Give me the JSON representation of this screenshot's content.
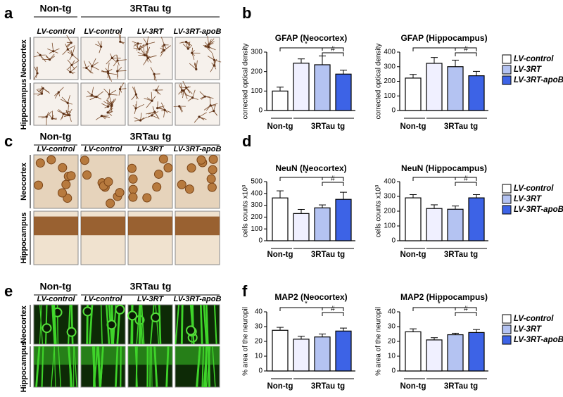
{
  "panel_letters": [
    "a",
    "b",
    "c",
    "d",
    "e",
    "f"
  ],
  "image_panels": [
    {
      "headers": [
        "Non-tg",
        "3RTau tg"
      ],
      "columns": [
        "LV-control",
        "LV-control",
        "LV-3RT",
        "LV-3RT-apoB"
      ],
      "rows": [
        "Neocortex",
        "Hippocampus"
      ]
    },
    {
      "headers": [
        "Non-tg",
        "3RTau tg"
      ],
      "columns": [
        "LV-control",
        "LV-control",
        "LV-3RT",
        "LV-3RT-apoB"
      ],
      "rows": [
        "Neocortex",
        "Hippocampus"
      ]
    },
    {
      "headers": [
        "Non-tg",
        "3RTau tg"
      ],
      "columns": [
        "LV-control",
        "LV-control",
        "LV-3RT",
        "LV-3RT-apoB"
      ],
      "rows": [
        "Neocortex",
        "Hippocampus"
      ]
    }
  ],
  "chart_data": [
    {
      "type": "bar",
      "title": "GFAP (Neocortex)",
      "y_label": "corrected optical density",
      "values": [
        100,
        243,
        235,
        187
      ],
      "errors": [
        20,
        22,
        45,
        20
      ],
      "colors": [
        "#ffffff",
        "#f0f0ff",
        "#b4c3f2",
        "#3d63e6"
      ],
      "ylim": [
        0,
        300
      ],
      "yticks": [
        0,
        100,
        200,
        300
      ],
      "groups": [
        "Non-tg",
        "3RTau tg"
      ],
      "annotations": [
        "*",
        "#"
      ]
    },
    {
      "type": "bar",
      "title": "GFAP (Hippocampus)",
      "y_label": "corrected optical density",
      "values": [
        222,
        323,
        300,
        238
      ],
      "errors": [
        25,
        40,
        45,
        30
      ],
      "colors": [
        "#ffffff",
        "#f0f0ff",
        "#b4c3f2",
        "#3d63e6"
      ],
      "ylim": [
        0,
        400
      ],
      "yticks": [
        0,
        100,
        200,
        300,
        400
      ],
      "groups": [
        "Non-tg",
        "3RTau tg"
      ],
      "annotations": [
        "*",
        "#"
      ],
      "legend": [
        {
          "name": "LV-control",
          "color": "#ffffff"
        },
        {
          "name": "LV-3RT",
          "color": "#b4c3f2"
        },
        {
          "name": "LV-3RT-apoB",
          "color": "#3d63e6"
        }
      ]
    },
    {
      "type": "bar",
      "title": "NeuN (Neocortex)",
      "y_label": "cells counts x10³",
      "values": [
        362,
        230,
        278,
        350
      ],
      "errors": [
        60,
        35,
        25,
        60
      ],
      "colors": [
        "#ffffff",
        "#f0f0ff",
        "#b4c3f2",
        "#3d63e6"
      ],
      "ylim": [
        0,
        500
      ],
      "yticks": [
        0,
        100,
        200,
        300,
        400,
        500
      ],
      "groups": [
        "Non-tg",
        "3RTau tg"
      ],
      "annotations": [
        "*",
        "#"
      ]
    },
    {
      "type": "bar",
      "title": "NeuN (Hippocampus)",
      "y_label": "cells counts x10³",
      "values": [
        290,
        218,
        213,
        290
      ],
      "errors": [
        22,
        25,
        22,
        22
      ],
      "colors": [
        "#ffffff",
        "#f0f0ff",
        "#b4c3f2",
        "#3d63e6"
      ],
      "ylim": [
        0,
        400
      ],
      "yticks": [
        0,
        100,
        200,
        300,
        400
      ],
      "groups": [
        "Non-tg",
        "3RTau tg"
      ],
      "annotations": [
        "*",
        "#"
      ],
      "legend": [
        {
          "name": "LV-control",
          "color": "#ffffff"
        },
        {
          "name": "LV-3RT",
          "color": "#b4c3f2"
        },
        {
          "name": "LV-3RT-apoB",
          "color": "#3d63e6"
        }
      ]
    },
    {
      "type": "bar",
      "title": "MAP2 (Neocortex)",
      "y_label": "% area of the neuropil",
      "values": [
        27.5,
        21.5,
        23,
        27
      ],
      "errors": [
        2,
        2,
        2,
        2
      ],
      "colors": [
        "#ffffff",
        "#f0f0ff",
        "#b4c3f2",
        "#3d63e6"
      ],
      "ylim": [
        0,
        40
      ],
      "yticks": [
        0,
        10,
        20,
        30,
        40
      ],
      "groups": [
        "Non-tg",
        "3RTau tg"
      ],
      "annotations": [
        "*",
        "#"
      ]
    },
    {
      "type": "bar",
      "title": "MAP2 (Hippocampus)",
      "y_label": "% area of the neuropil",
      "values": [
        26.5,
        21,
        24.5,
        26
      ],
      "errors": [
        2,
        1.5,
        1,
        2
      ],
      "colors": [
        "#ffffff",
        "#f0f0ff",
        "#b4c3f2",
        "#3d63e6"
      ],
      "ylim": [
        0,
        40
      ],
      "yticks": [
        0,
        10,
        20,
        30,
        40
      ],
      "groups": [
        "Non-tg",
        "3RTau tg"
      ],
      "annotations": [
        "*",
        "#"
      ],
      "legend": [
        {
          "name": "LV-control",
          "color": "#ffffff"
        },
        {
          "name": "LV-3RT",
          "color": "#b4c3f2"
        },
        {
          "name": "LV-3RT-apoB",
          "color": "#3d63e6"
        }
      ]
    }
  ]
}
